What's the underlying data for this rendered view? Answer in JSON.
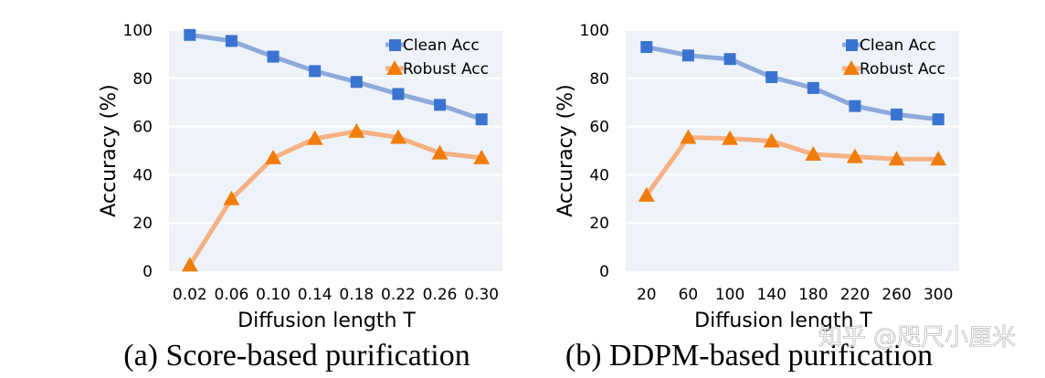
{
  "chart_data": [
    {
      "type": "line",
      "caption": "(a) Score-based purification",
      "xlabel": "Diffusion length T",
      "ylabel": "Accuracy (%)",
      "categories": [
        "0.02",
        "0.06",
        "0.10",
        "0.14",
        "0.18",
        "0.22",
        "0.26",
        "0.30"
      ],
      "ylim": [
        0,
        100
      ],
      "yticks": [
        "0",
        "20",
        "40",
        "60",
        "80",
        "100"
      ],
      "grid": true,
      "legend": "top-right",
      "series": [
        {
          "name": "Clean Acc",
          "marker": "square",
          "color": "#3b73d0",
          "line_color": "#8eaadb",
          "values": [
            98,
            95.5,
            89,
            83,
            78.5,
            73.5,
            69,
            63
          ]
        },
        {
          "name": "Robust Acc",
          "marker": "triangle",
          "color": "#f07d0a",
          "line_color": "#f5b183",
          "values": [
            2.5,
            30,
            47,
            55,
            58,
            55.5,
            49,
            47
          ]
        }
      ]
    },
    {
      "type": "line",
      "caption": "(b) DDPM-based purification",
      "xlabel": "Diffusion length T",
      "ylabel": "Accuracy (%)",
      "categories": [
        "20",
        "60",
        "100",
        "140",
        "180",
        "220",
        "260",
        "300"
      ],
      "ylim": [
        0,
        100
      ],
      "yticks": [
        "0",
        "20",
        "40",
        "60",
        "80",
        "100"
      ],
      "grid": true,
      "legend": "top-right",
      "series": [
        {
          "name": "Clean Acc",
          "marker": "square",
          "color": "#3b73d0",
          "line_color": "#8eaadb",
          "values": [
            93,
            89.5,
            88,
            80.5,
            76,
            68.5,
            65,
            63
          ]
        },
        {
          "name": "Robust Acc",
          "marker": "triangle",
          "color": "#f07d0a",
          "line_color": "#f5b183",
          "values": [
            31.5,
            55.5,
            55,
            54,
            48.5,
            47.5,
            46.5,
            46.5
          ]
        }
      ]
    }
  ],
  "watermark": "知乎 @咫尺小厘米",
  "plot_bg": "#eef3fa"
}
